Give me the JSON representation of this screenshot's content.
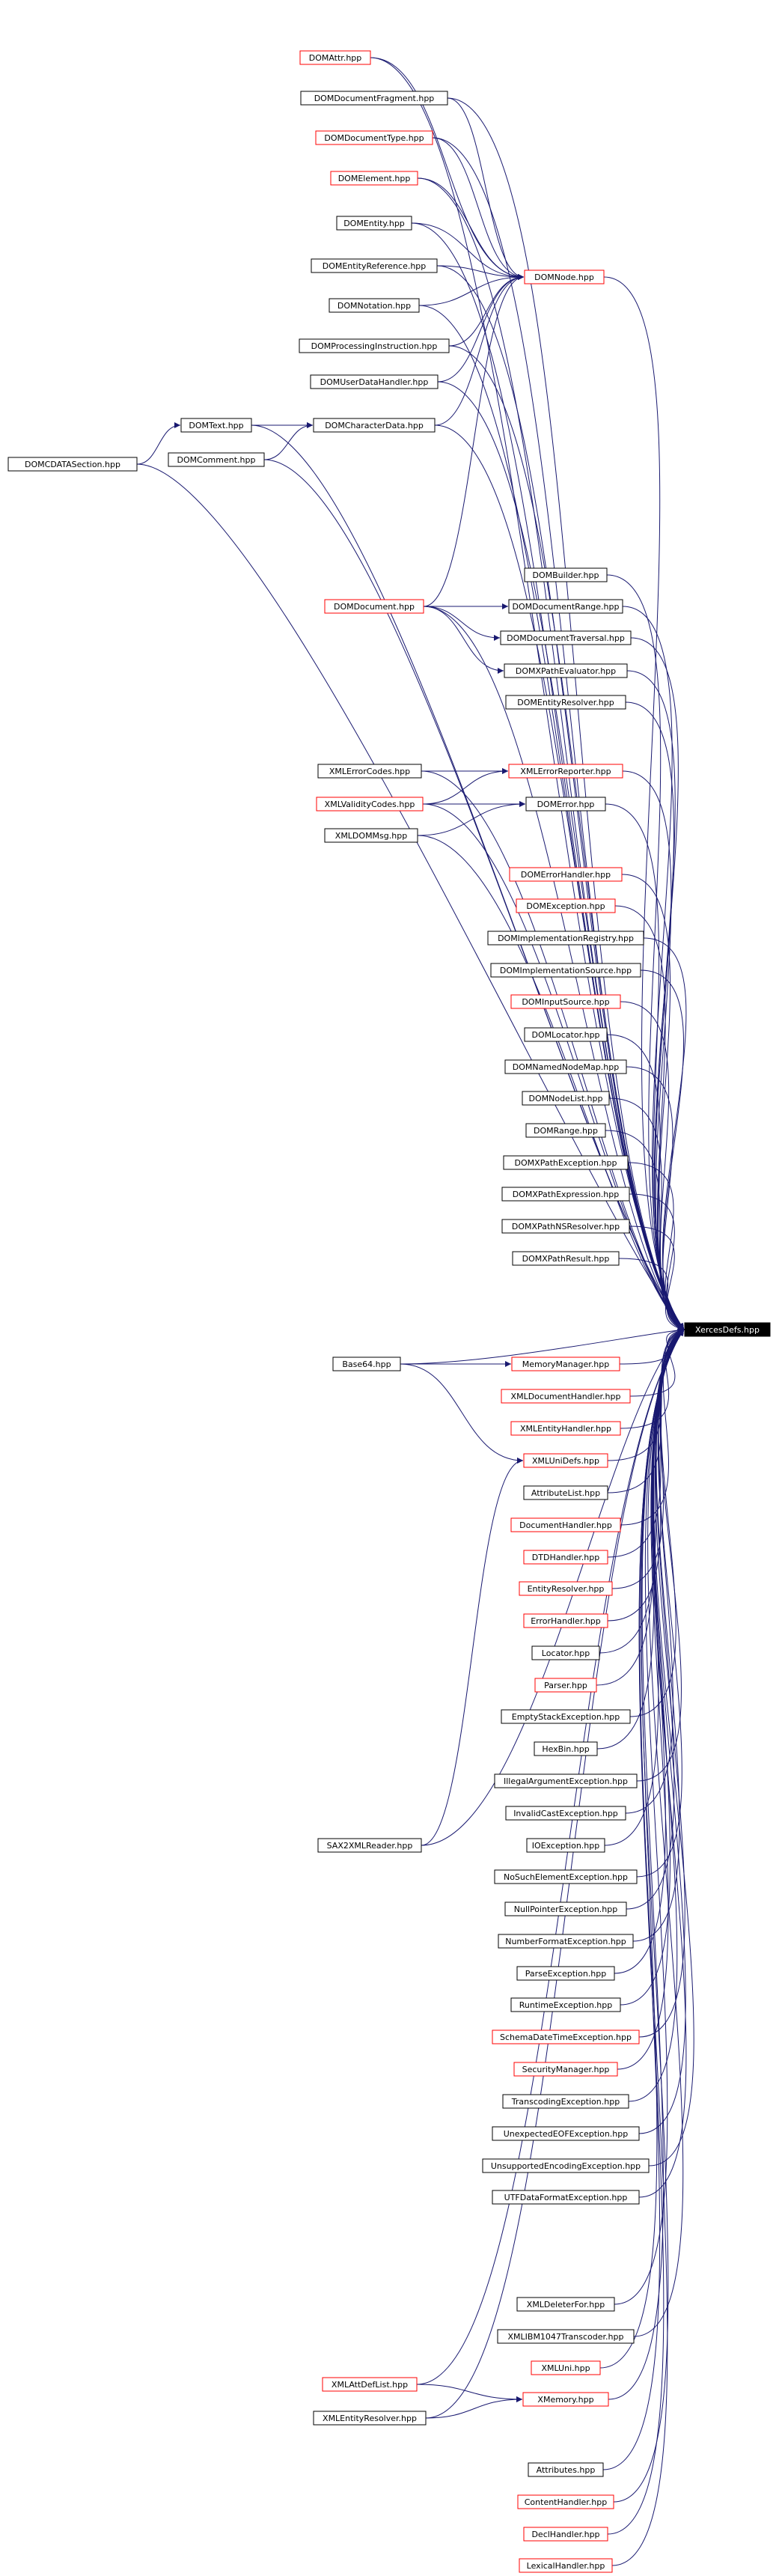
{
  "root": {
    "id": "XercesDefs",
    "label": "XercesDefs.hpp"
  },
  "colors": {
    "edge": "#191970",
    "red_border": "#ff0000",
    "black_border": "#000000",
    "root_fill": "#000000",
    "root_text": "#ffffff"
  },
  "nodes": [
    {
      "id": "DOMAttr",
      "label": "DOMAttr.hpp",
      "border": "red"
    },
    {
      "id": "DOMDocumentFragment",
      "label": "DOMDocumentFragment.hpp",
      "border": "black"
    },
    {
      "id": "DOMDocumentType",
      "label": "DOMDocumentType.hpp",
      "border": "red"
    },
    {
      "id": "DOMElement",
      "label": "DOMElement.hpp",
      "border": "red"
    },
    {
      "id": "DOMEntity",
      "label": "DOMEntity.hpp",
      "border": "black"
    },
    {
      "id": "DOMEntityReference",
      "label": "DOMEntityReference.hpp",
      "border": "black"
    },
    {
      "id": "DOMNode",
      "label": "DOMNode.hpp",
      "border": "red"
    },
    {
      "id": "DOMNotation",
      "label": "DOMNotation.hpp",
      "border": "black"
    },
    {
      "id": "DOMProcessingInstruction",
      "label": "DOMProcessingInstruction.hpp",
      "border": "black"
    },
    {
      "id": "DOMUserDataHandler",
      "label": "DOMUserDataHandler.hpp",
      "border": "black"
    },
    {
      "id": "DOMText",
      "label": "DOMText.hpp",
      "border": "black"
    },
    {
      "id": "DOMCharacterData",
      "label": "DOMCharacterData.hpp",
      "border": "black"
    },
    {
      "id": "DOMCDATASection",
      "label": "DOMCDATASection.hpp",
      "border": "black"
    },
    {
      "id": "DOMComment",
      "label": "DOMComment.hpp",
      "border": "black"
    },
    {
      "id": "DOMBuilder",
      "label": "DOMBuilder.hpp",
      "border": "black"
    },
    {
      "id": "DOMDocument",
      "label": "DOMDocument.hpp",
      "border": "red"
    },
    {
      "id": "DOMDocumentRange",
      "label": "DOMDocumentRange.hpp",
      "border": "black"
    },
    {
      "id": "DOMDocumentTraversal",
      "label": "DOMDocumentTraversal.hpp",
      "border": "black"
    },
    {
      "id": "DOMXPathEvaluator",
      "label": "DOMXPathEvaluator.hpp",
      "border": "black"
    },
    {
      "id": "DOMEntityResolver",
      "label": "DOMEntityResolver.hpp",
      "border": "black"
    },
    {
      "id": "XMLErrorCodes",
      "label": "XMLErrorCodes.hpp",
      "border": "black"
    },
    {
      "id": "XMLErrorReporter",
      "label": "XMLErrorReporter.hpp",
      "border": "red"
    },
    {
      "id": "XMLValidityCodes",
      "label": "XMLValidityCodes.hpp",
      "border": "red"
    },
    {
      "id": "DOMError",
      "label": "DOMError.hpp",
      "border": "black"
    },
    {
      "id": "XMLDOMMsg",
      "label": "XMLDOMMsg.hpp",
      "border": "black"
    },
    {
      "id": "DOMErrorHandler",
      "label": "DOMErrorHandler.hpp",
      "border": "red"
    },
    {
      "id": "DOMException",
      "label": "DOMException.hpp",
      "border": "red"
    },
    {
      "id": "DOMImplementationRegistry",
      "label": "DOMImplementationRegistry.hpp",
      "border": "black"
    },
    {
      "id": "DOMImplementationSource",
      "label": "DOMImplementationSource.hpp",
      "border": "black"
    },
    {
      "id": "DOMInputSource",
      "label": "DOMInputSource.hpp",
      "border": "red"
    },
    {
      "id": "DOMLocator",
      "label": "DOMLocator.hpp",
      "border": "black"
    },
    {
      "id": "DOMNamedNodeMap",
      "label": "DOMNamedNodeMap.hpp",
      "border": "black"
    },
    {
      "id": "DOMNodeList",
      "label": "DOMNodeList.hpp",
      "border": "black"
    },
    {
      "id": "DOMRange",
      "label": "DOMRange.hpp",
      "border": "black"
    },
    {
      "id": "DOMXPathException",
      "label": "DOMXPathException.hpp",
      "border": "black"
    },
    {
      "id": "DOMXPathExpression",
      "label": "DOMXPathExpression.hpp",
      "border": "black"
    },
    {
      "id": "DOMXPathNSResolver",
      "label": "DOMXPathNSResolver.hpp",
      "border": "black"
    },
    {
      "id": "DOMXPathResult",
      "label": "DOMXPathResult.hpp",
      "border": "black"
    },
    {
      "id": "XercesDefs",
      "label": "XercesDefs.hpp",
      "border": "root"
    },
    {
      "id": "Base64",
      "label": "Base64.hpp",
      "border": "black"
    },
    {
      "id": "MemoryManager",
      "label": "MemoryManager.hpp",
      "border": "red"
    },
    {
      "id": "XMLDocumentHandler",
      "label": "XMLDocumentHandler.hpp",
      "border": "red"
    },
    {
      "id": "XMLEntityHandler",
      "label": "XMLEntityHandler.hpp",
      "border": "red"
    },
    {
      "id": "XMLUniDefs",
      "label": "XMLUniDefs.hpp",
      "border": "red"
    },
    {
      "id": "AttributeList",
      "label": "AttributeList.hpp",
      "border": "black"
    },
    {
      "id": "DocumentHandler",
      "label": "DocumentHandler.hpp",
      "border": "red"
    },
    {
      "id": "DTDHandler",
      "label": "DTDHandler.hpp",
      "border": "red"
    },
    {
      "id": "EntityResolver",
      "label": "EntityResolver.hpp",
      "border": "red"
    },
    {
      "id": "ErrorHandler",
      "label": "ErrorHandler.hpp",
      "border": "red"
    },
    {
      "id": "Locator",
      "label": "Locator.hpp",
      "border": "black"
    },
    {
      "id": "Parser",
      "label": "Parser.hpp",
      "border": "red"
    },
    {
      "id": "EmptyStackException",
      "label": "EmptyStackException.hpp",
      "border": "black"
    },
    {
      "id": "HexBin",
      "label": "HexBin.hpp",
      "border": "black"
    },
    {
      "id": "IllegalArgumentException",
      "label": "IllegalArgumentException.hpp",
      "border": "black"
    },
    {
      "id": "InvalidCastException",
      "label": "InvalidCastException.hpp",
      "border": "black"
    },
    {
      "id": "IOException",
      "label": "IOException.hpp",
      "border": "black"
    },
    {
      "id": "SAX2XMLReader",
      "label": "SAX2XMLReader.hpp",
      "border": "black"
    },
    {
      "id": "NoSuchElementException",
      "label": "NoSuchElementException.hpp",
      "border": "black"
    },
    {
      "id": "NullPointerException",
      "label": "NullPointerException.hpp",
      "border": "black"
    },
    {
      "id": "NumberFormatException",
      "label": "NumberFormatException.hpp",
      "border": "black"
    },
    {
      "id": "ParseException",
      "label": "ParseException.hpp",
      "border": "black"
    },
    {
      "id": "RuntimeException",
      "label": "RuntimeException.hpp",
      "border": "black"
    },
    {
      "id": "SchemaDateTimeException",
      "label": "SchemaDateTimeException.hpp",
      "border": "red"
    },
    {
      "id": "SecurityManager",
      "label": "SecurityManager.hpp",
      "border": "red"
    },
    {
      "id": "TranscodingException",
      "label": "TranscodingException.hpp",
      "border": "black"
    },
    {
      "id": "UnexpectedEOFException",
      "label": "UnexpectedEOFException.hpp",
      "border": "black"
    },
    {
      "id": "UnsupportedEncodingException",
      "label": "UnsupportedEncodingException.hpp",
      "border": "black"
    },
    {
      "id": "UTFDataFormatException",
      "label": "UTFDataFormatException.hpp",
      "border": "black"
    },
    {
      "id": "XMLDeleterFor",
      "label": "XMLDeleterFor.hpp",
      "border": "black"
    },
    {
      "id": "XMLIBM1047Transcoder",
      "label": "XMLIBM1047Transcoder.hpp",
      "border": "black"
    },
    {
      "id": "XMLUni",
      "label": "XMLUni.hpp",
      "border": "red"
    },
    {
      "id": "XMLAttDefList",
      "label": "XMLAttDefList.hpp",
      "border": "red"
    },
    {
      "id": "XMemory",
      "label": "XMemory.hpp",
      "border": "red"
    },
    {
      "id": "XMLEntityResolver",
      "label": "XMLEntityResolver.hpp",
      "border": "black"
    },
    {
      "id": "Attributes",
      "label": "Attributes.hpp",
      "border": "black"
    },
    {
      "id": "ContentHandler",
      "label": "ContentHandler.hpp",
      "border": "red"
    },
    {
      "id": "DeclHandler",
      "label": "DeclHandler.hpp",
      "border": "red"
    },
    {
      "id": "LexicalHandler",
      "label": "LexicalHandler.hpp",
      "border": "red"
    }
  ],
  "edges": [
    [
      "DOMAttr",
      "DOMNode"
    ],
    [
      "DOMDocumentFragment",
      "DOMNode"
    ],
    [
      "DOMDocumentType",
      "DOMNode"
    ],
    [
      "DOMElement",
      "DOMNode"
    ],
    [
      "DOMEntity",
      "DOMNode"
    ],
    [
      "DOMEntityReference",
      "DOMNode"
    ],
    [
      "DOMNotation",
      "DOMNode"
    ],
    [
      "DOMProcessingInstruction",
      "DOMNode"
    ],
    [
      "DOMUserDataHandler",
      "DOMNode"
    ],
    [
      "DOMCharacterData",
      "DOMNode"
    ],
    [
      "DOMDocument",
      "DOMNode"
    ],
    [
      "DOMCDATASection",
      "DOMText"
    ],
    [
      "DOMText",
      "DOMCharacterData"
    ],
    [
      "DOMComment",
      "DOMCharacterData"
    ],
    [
      "DOMDocument",
      "DOMDocumentRange"
    ],
    [
      "DOMDocument",
      "DOMDocumentTraversal"
    ],
    [
      "DOMDocument",
      "DOMXPathEvaluator"
    ],
    [
      "XMLErrorCodes",
      "XMLErrorReporter"
    ],
    [
      "XMLValidityCodes",
      "XMLErrorReporter"
    ],
    [
      "XMLValidityCodes",
      "DOMError"
    ],
    [
      "XMLDOMMsg",
      "DOMError"
    ],
    [
      "Base64",
      "MemoryManager"
    ],
    [
      "Base64",
      "XMLUniDefs"
    ],
    [
      "SAX2XMLReader",
      "XMLUniDefs"
    ],
    [
      "XMLAttDefList",
      "XMemory"
    ],
    [
      "XMLEntityResolver",
      "XMemory"
    ],
    [
      "DOMAttr",
      "XercesDefs"
    ],
    [
      "DOMDocumentFragment",
      "XercesDefs"
    ],
    [
      "DOMDocumentType",
      "XercesDefs"
    ],
    [
      "DOMElement",
      "XercesDefs"
    ],
    [
      "DOMEntity",
      "XercesDefs"
    ],
    [
      "DOMEntityReference",
      "XercesDefs"
    ],
    [
      "DOMNode",
      "XercesDefs"
    ],
    [
      "DOMNotation",
      "XercesDefs"
    ],
    [
      "DOMProcessingInstruction",
      "XercesDefs"
    ],
    [
      "DOMUserDataHandler",
      "XercesDefs"
    ],
    [
      "DOMText",
      "XercesDefs"
    ],
    [
      "DOMCharacterData",
      "XercesDefs"
    ],
    [
      "DOMCDATASection",
      "XercesDefs"
    ],
    [
      "DOMComment",
      "XercesDefs"
    ],
    [
      "DOMBuilder",
      "XercesDefs"
    ],
    [
      "DOMDocument",
      "XercesDefs"
    ],
    [
      "DOMDocumentRange",
      "XercesDefs"
    ],
    [
      "DOMDocumentTraversal",
      "XercesDefs"
    ],
    [
      "DOMXPathEvaluator",
      "XercesDefs"
    ],
    [
      "DOMEntityResolver",
      "XercesDefs"
    ],
    [
      "XMLErrorCodes",
      "XercesDefs"
    ],
    [
      "XMLErrorReporter",
      "XercesDefs"
    ],
    [
      "XMLValidityCodes",
      "XercesDefs"
    ],
    [
      "DOMError",
      "XercesDefs"
    ],
    [
      "XMLDOMMsg",
      "XercesDefs"
    ],
    [
      "DOMErrorHandler",
      "XercesDefs"
    ],
    [
      "DOMException",
      "XercesDefs"
    ],
    [
      "DOMImplementationRegistry",
      "XercesDefs"
    ],
    [
      "DOMImplementationSource",
      "XercesDefs"
    ],
    [
      "DOMInputSource",
      "XercesDefs"
    ],
    [
      "DOMLocator",
      "XercesDefs"
    ],
    [
      "DOMNamedNodeMap",
      "XercesDefs"
    ],
    [
      "DOMNodeList",
      "XercesDefs"
    ],
    [
      "DOMRange",
      "XercesDefs"
    ],
    [
      "DOMXPathException",
      "XercesDefs"
    ],
    [
      "DOMXPathExpression",
      "XercesDefs"
    ],
    [
      "DOMXPathNSResolver",
      "XercesDefs"
    ],
    [
      "DOMXPathResult",
      "XercesDefs"
    ],
    [
      "Base64",
      "XercesDefs"
    ],
    [
      "MemoryManager",
      "XercesDefs"
    ],
    [
      "XMLDocumentHandler",
      "XercesDefs"
    ],
    [
      "XMLEntityHandler",
      "XercesDefs"
    ],
    [
      "XMLUniDefs",
      "XercesDefs"
    ],
    [
      "AttributeList",
      "XercesDefs"
    ],
    [
      "DocumentHandler",
      "XercesDefs"
    ],
    [
      "DTDHandler",
      "XercesDefs"
    ],
    [
      "EntityResolver",
      "XercesDefs"
    ],
    [
      "ErrorHandler",
      "XercesDefs"
    ],
    [
      "Locator",
      "XercesDefs"
    ],
    [
      "Parser",
      "XercesDefs"
    ],
    [
      "EmptyStackException",
      "XercesDefs"
    ],
    [
      "HexBin",
      "XercesDefs"
    ],
    [
      "IllegalArgumentException",
      "XercesDefs"
    ],
    [
      "InvalidCastException",
      "XercesDefs"
    ],
    [
      "IOException",
      "XercesDefs"
    ],
    [
      "SAX2XMLReader",
      "XercesDefs"
    ],
    [
      "NoSuchElementException",
      "XercesDefs"
    ],
    [
      "NullPointerException",
      "XercesDefs"
    ],
    [
      "NumberFormatException",
      "XercesDefs"
    ],
    [
      "ParseException",
      "XercesDefs"
    ],
    [
      "RuntimeException",
      "XercesDefs"
    ],
    [
      "SchemaDateTimeException",
      "XercesDefs"
    ],
    [
      "SecurityManager",
      "XercesDefs"
    ],
    [
      "TranscodingException",
      "XercesDefs"
    ],
    [
      "UnexpectedEOFException",
      "XercesDefs"
    ],
    [
      "UnsupportedEncodingException",
      "XercesDefs"
    ],
    [
      "UTFDataFormatException",
      "XercesDefs"
    ],
    [
      "XMLDeleterFor",
      "XercesDefs"
    ],
    [
      "XMLIBM1047Transcoder",
      "XercesDefs"
    ],
    [
      "XMLUni",
      "XercesDefs"
    ],
    [
      "XMLAttDefList",
      "XercesDefs"
    ],
    [
      "XMemory",
      "XercesDefs"
    ],
    [
      "XMLEntityResolver",
      "XercesDefs"
    ],
    [
      "Attributes",
      "XercesDefs"
    ],
    [
      "ContentHandler",
      "XercesDefs"
    ],
    [
      "DeclHandler",
      "XercesDefs"
    ],
    [
      "LexicalHandler",
      "XercesDefs"
    ]
  ]
}
